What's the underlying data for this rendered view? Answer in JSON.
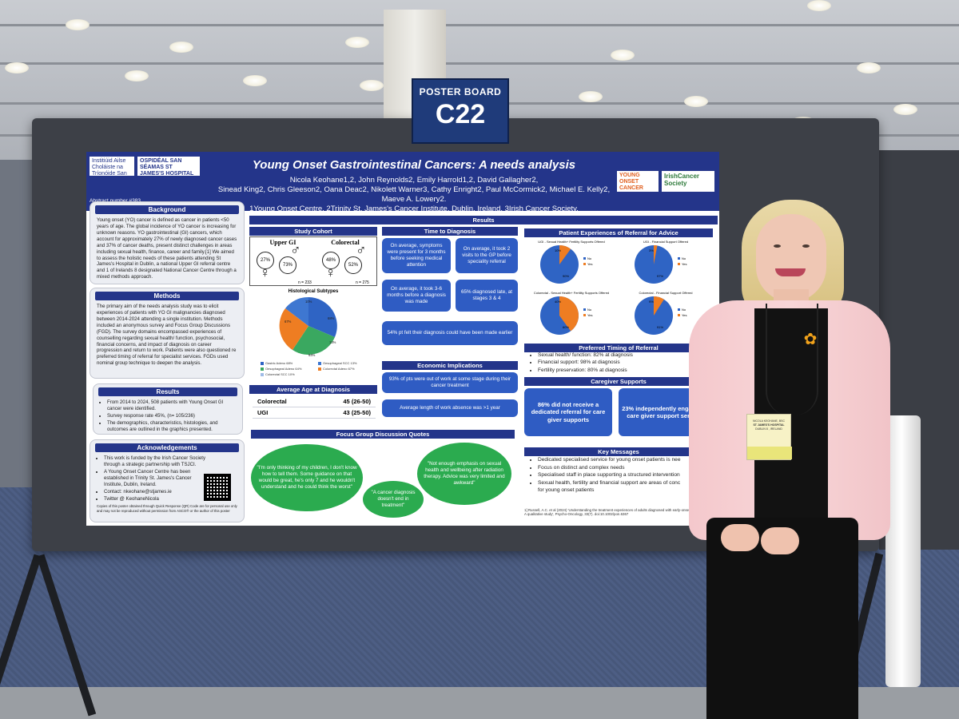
{
  "sign": {
    "label": "POSTER BOARD",
    "code": "C22"
  },
  "poster": {
    "logo_left": "Institiúid Ailse Choláiste na Tríonóide San Séamas / Trinity St James's Cancer Institute",
    "logo_hospital": "OSPIDÉAL SAN SÉAMAS ST JAMES'S HOSPITAL",
    "logo_yo": "YOUNG ONSET CANCER CENTRE",
    "logo_ics": "IrishCancer Society",
    "title": "Young Onset Gastrointestinal Cancers: A needs analysis",
    "authors_line1": "Nicola Keohane1,2, John Reynolds2, Emily Harrold1,2, David Gallagher2,",
    "authors_line2": "Sinead King2, Chris Gleeson2, Oana Deac2, Nikolett Warner3, Cathy Enright2, Paul McCormick2, Michael E. Kelly2, Maeve A. Lowery2.",
    "authors_line3": "1Young Onset Centre, 2Trinity St. James's Cancer Institute, Dublin, Ireland, 3Irish Cancer Society.",
    "abstract": "Abstract number #383",
    "background": {
      "heading": "Background",
      "text": "Young onset (YO) cancer is defined as cancer in patients <50 years of age. The global incidence of YO cancer is increasing for unknown reasons. YO gastrointestinal (GI) cancers, which account for approximately 27% of newly diagnosed cancer cases and 37% of cancer deaths, present distinct challenges in areas including sexual health, finance, career and family.[1] We aimed to assess the holistic needs of these patients attending St James's Hospital in Dublin, a national Upper GI referral centre and 1 of Irelands 8 designated National Cancer Centre through a mixed methods approach."
    },
    "methods": {
      "heading": "Methods",
      "text": "The primary aim of the needs analysis study was to elicit experiences of patients with YO GI malignancies diagnosed between 2014-2024 attending a single institution. Methods included an anonymous survey and Focus Group Discussions (FGD). The survey domains encompassed experiences of counselling regarding sexual health/ function, psychosocial, financial concerns, and impact of diagnosis on career progression and return to work. Patients were also questioned re preferred timing of referral for specialist services. FGDs used nominal group technique to deepen the analysis."
    },
    "results_left": {
      "heading": "Results",
      "items": [
        "From 2014 to 2024, 508 patients with Young Onset GI cancer were identified.",
        "Survey response rate 45%, (n= 105/236)",
        "The demographics, characteristics, histologies, and outcomes are outlined in the graphics presented."
      ]
    },
    "acknowledgements": {
      "heading": "Acknowledgements",
      "items": [
        "This work is funded by the Irish Cancer Society through a strategic partnership with TSJCI.",
        "A Young Onset Cancer Centre has been established in Trinity St. James's Cancer Institute, Dublin, Ireland.",
        "Contact: nkeohane@stjames.ie",
        "Twitter @ KeohaneNicola"
      ],
      "footnote": "Copies of this poster obtained through Quick Response (QR) Code are for personal use only and may not be reproduced without permission from ASCO® or the author of this poster"
    },
    "results_banner": "Results",
    "study_cohort": {
      "heading": "Study Cohort",
      "upper_gi": "Upper GI",
      "colorectal": "Colorectal",
      "ugi_female": "27%",
      "ugi_male": "73%",
      "crc_female": "48%",
      "crc_male": "52%",
      "ugi_n": "n = 233",
      "crc_n": "n = 275"
    },
    "histology": {
      "heading": "Histological Subtypes",
      "labels": [
        "10%",
        "68%",
        "13%",
        "64%",
        "67%"
      ],
      "legend": [
        "Gastric Adeno 68%",
        "Oesophageal SCC 13%",
        "Oesophageal Adeno 64%",
        "Colorectal Adeno 67%",
        "Colorectal SCC 10%"
      ]
    },
    "age": {
      "heading": "Average Age at Diagnosis",
      "rows": [
        {
          "label": "Colorectal",
          "value": "45 (26-50)"
        },
        {
          "label": "UGI",
          "value": "43 (25-50)"
        }
      ]
    },
    "time_to_diagnosis": {
      "heading": "Time to Diagnosis",
      "boxes": [
        "On average, symptoms were present for 3 months before seeking medical attention",
        "On average, it took 2 visits to the GP before speciality referral",
        "On average, it took 3-6 months before a diagnosis was made",
        "65% diagnosed late, at stages 3 & 4",
        "54% pt felt their diagnosis could have been made earlier"
      ]
    },
    "economic": {
      "heading": "Economic Implications",
      "boxes": [
        "93% of pts were out of work at some stage during their cancer treatment",
        "Average length of work absence was >1 year"
      ]
    },
    "patient_experiences": {
      "heading": "Patient Experiences of Referral for Advice",
      "pies": [
        {
          "title": "UGI - Sexual Health+ Fertility Supports Offered",
          "no": "90%",
          "yes": "10%"
        },
        {
          "title": "UGI - Financial Support Offered",
          "no": "97%",
          "yes": "3%"
        },
        {
          "title": "Colorectal - Sexual Health+ Fertility Supports Offered",
          "no": "60%",
          "yes": "40%"
        },
        {
          "title": "Colorectal - Financial Support Offered",
          "no": "91%",
          "yes": "9%"
        }
      ],
      "legend_no": "No",
      "legend_yes": "Yes"
    },
    "preferred_timing": {
      "heading": "Preferred Timing of Referral",
      "items": [
        "Sexual health/ function: 82% at diagnosis",
        "Financial support: 98% at diagnosis",
        "Fertility preservation: 80% at diagnosis"
      ]
    },
    "caregiver": {
      "heading": "Caregiver Supports",
      "boxes": [
        "86% did not receive a dedicated referral for care giver supports",
        "23% independently engaged in care giver support services"
      ]
    },
    "key_messages": {
      "heading": "Key Messages",
      "items": [
        "Dedicated specialised service for young onset patients is nee",
        "Focus on distinct and complex needs",
        "Specialised staff in place supporting a structured intervention",
        "Sexual health, fertility and financial support are areas of conc",
        "for young onset patients"
      ]
    },
    "focus_group": {
      "heading": "Focus Group Discussion Quotes",
      "quotes": [
        "\"I'm only thinking of my children, I don't know how to tell them. Some guidance on that would be great, he's only 7 and he wouldn't understand and he could think the worst\"",
        "\"A cancer diagnosis doesn't end in treatment\"",
        "\"Not enough emphasis on sexual health and wellbeing after radiation therapy. Advice was very limited and awkward\""
      ]
    },
    "reference": "1] Russell, A.C. et al (2024) 'Understanding the treatment experiences of adults diagnosed with early-onset colorectal cancer: A qualitative study', Psycho-Oncology, 33(7). doi:10.1002/pon.6367"
  },
  "badge": {
    "name": "NICOLA KEOHANE, BSC",
    "org": "ST JAMES'S HOSPITAL",
    "city": "DUBLIN 8 , IRELAND"
  },
  "colors": {
    "poster_blue": "#24358a",
    "box_blue": "#2f5cc3",
    "quote_green": "#2bab4f",
    "pie_blue": "#2f64c4",
    "pie_orange": "#ee7d22",
    "pie_green": "#3aa860"
  }
}
